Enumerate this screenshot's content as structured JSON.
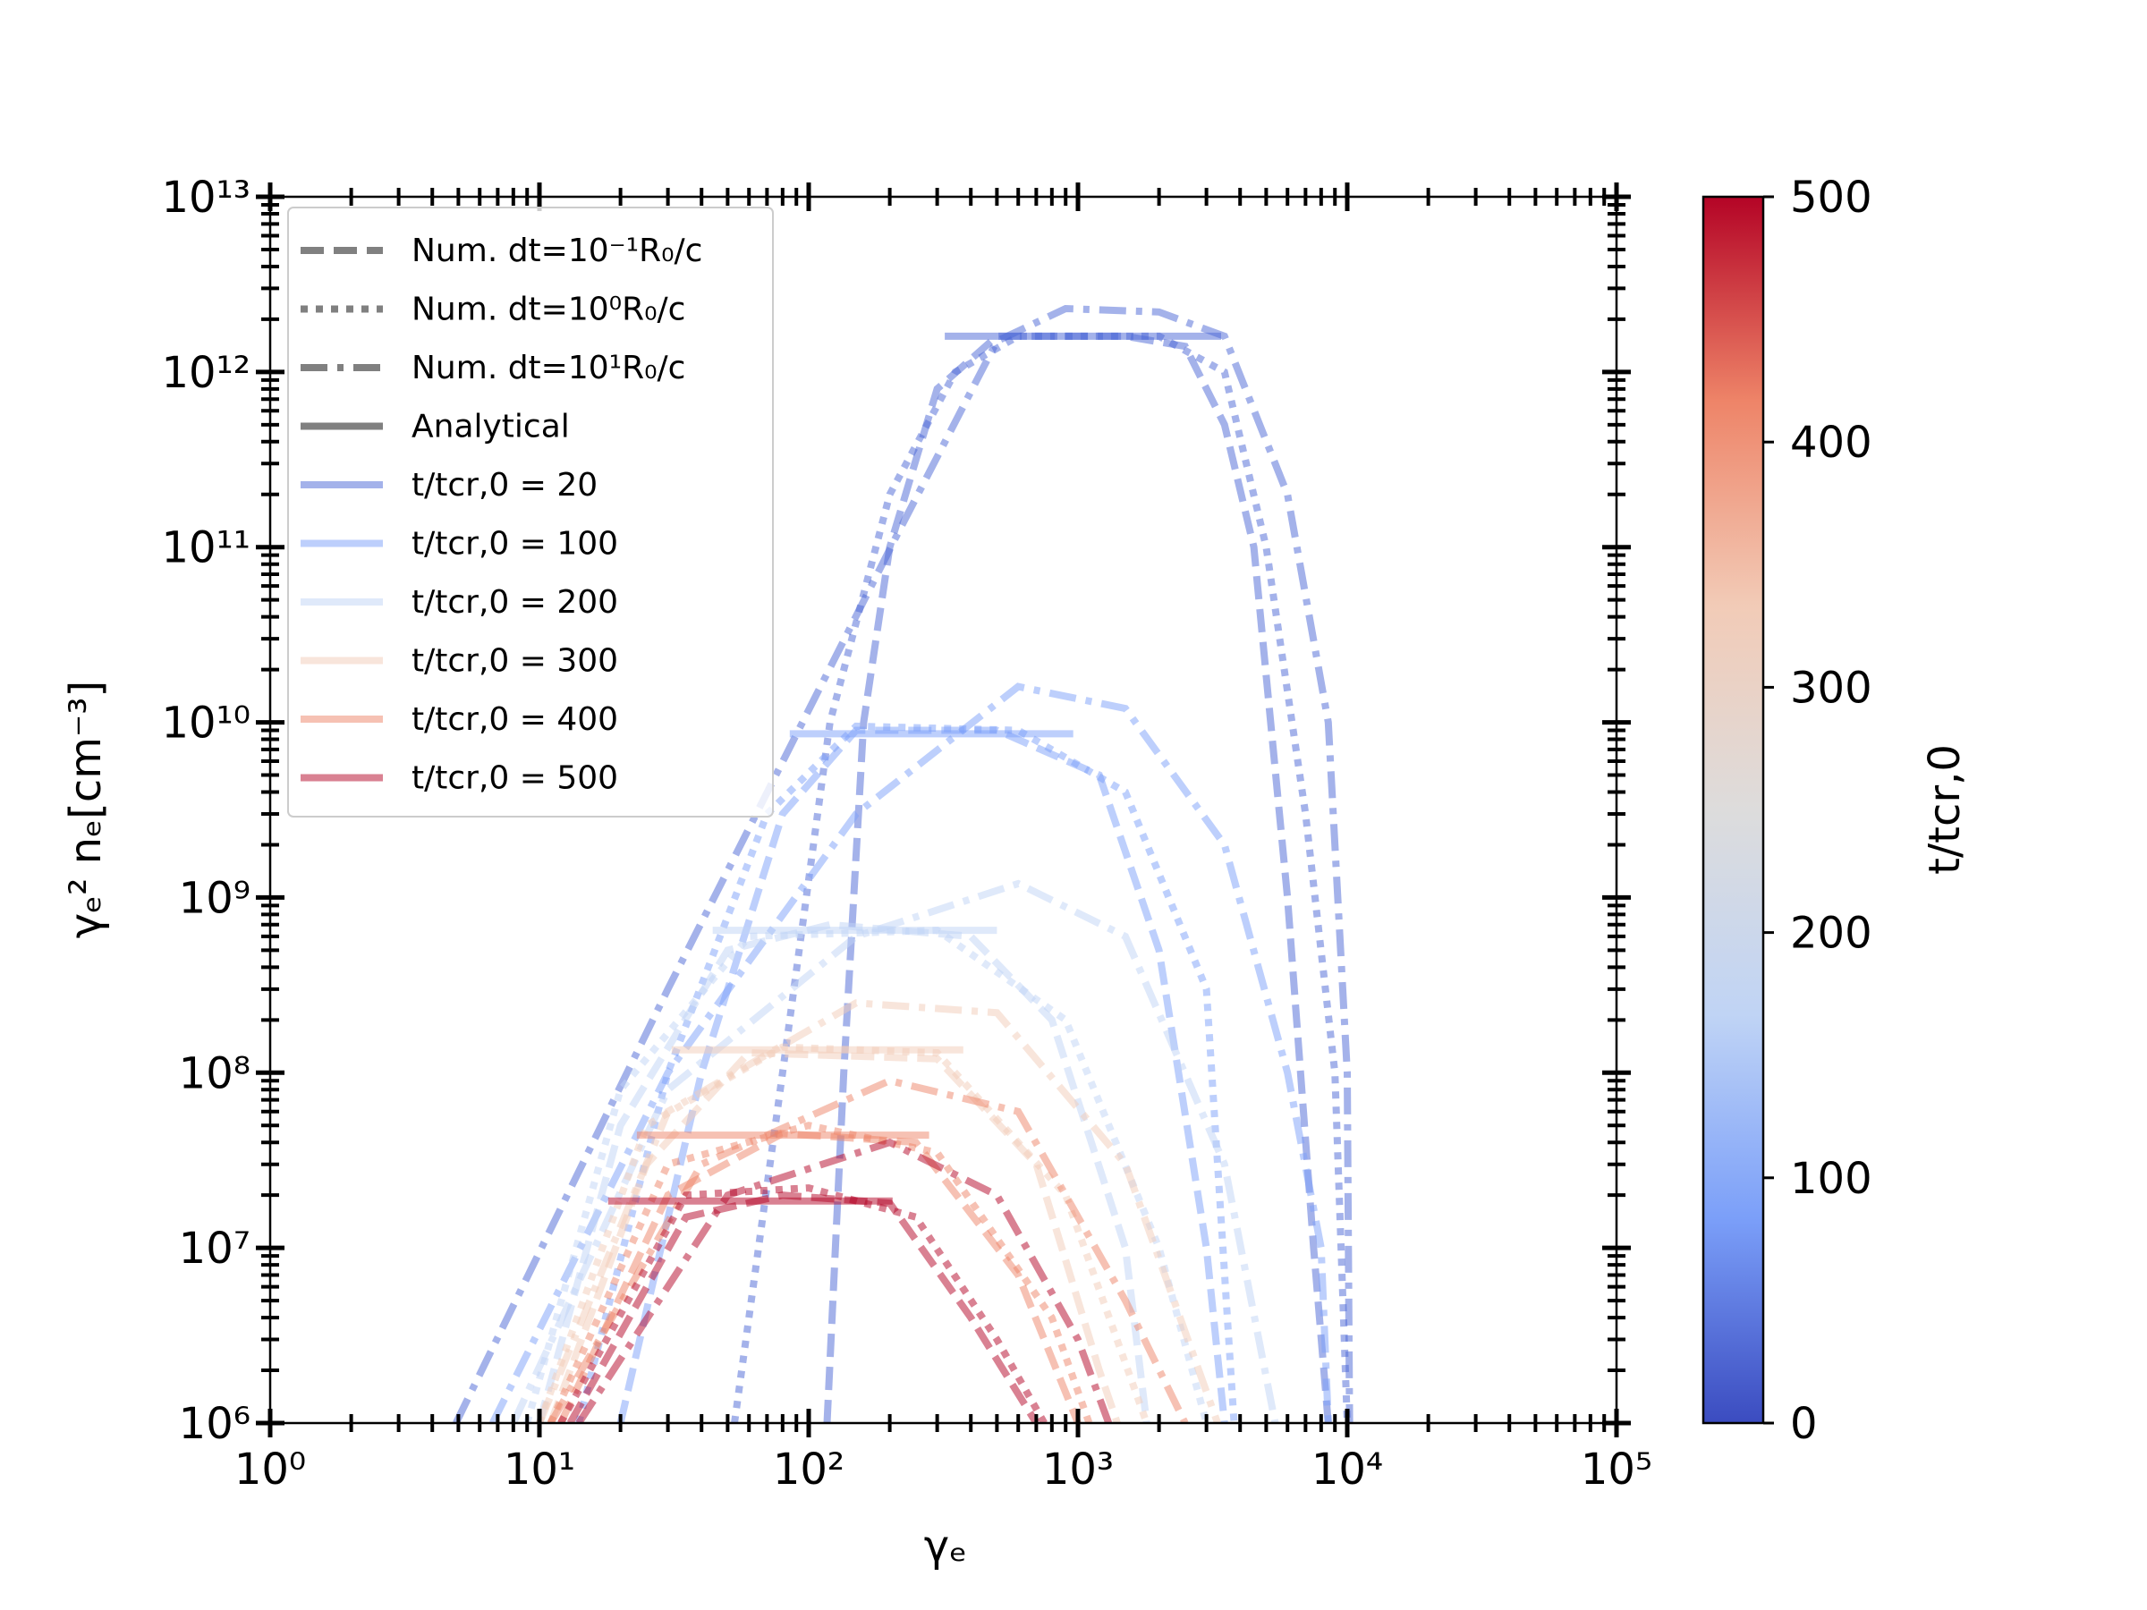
{
  "chart_data": {
    "type": "line",
    "xlabel": "γₑ",
    "ylabel": "γₑ² nₑ[cm⁻³]",
    "xscale": "log",
    "yscale": "log",
    "xlim": [
      1,
      100000
    ],
    "ylim": [
      1000000,
      10000000000000
    ],
    "xticks": [
      {
        "value": 1,
        "label": "10⁰"
      },
      {
        "value": 10,
        "label": "10¹"
      },
      {
        "value": 100,
        "label": "10²"
      },
      {
        "value": 1000,
        "label": "10³"
      },
      {
        "value": 10000,
        "label": "10⁴"
      },
      {
        "value": 100000,
        "label": "10⁵"
      }
    ],
    "yticks": [
      {
        "value": 1000000,
        "label": "10⁶"
      },
      {
        "value": 10000000,
        "label": "10⁷"
      },
      {
        "value": 100000000,
        "label": "10⁸"
      },
      {
        "value": 1000000000,
        "label": "10⁹"
      },
      {
        "value": 10000000000,
        "label": "10¹⁰"
      },
      {
        "value": 100000000000,
        "label": "10¹¹"
      },
      {
        "value": 1000000000000,
        "label": "10¹²"
      },
      {
        "value": 10000000000000,
        "label": "10¹³"
      }
    ],
    "minor_ticks": true,
    "alpha": 0.5,
    "legend": "upper left",
    "styles": [
      {
        "name": "Num. dt=10⁻¹R₀/c",
        "linestyle": "dashed"
      },
      {
        "name": "Num. dt=10⁰R₀/c",
        "linestyle": "dotted"
      },
      {
        "name": "Num. dt=10¹R₀/c",
        "linestyle": "dashdot"
      },
      {
        "name": "Analytical",
        "linestyle": "solid"
      }
    ],
    "style_color": "#808080",
    "times": [
      {
        "name": "t/tcr,0 = 20",
        "color": "#4a66d6"
      },
      {
        "name": "t/tcr,0 = 100",
        "color": "#7b9ff9"
      },
      {
        "name": "t/tcr,0 = 200",
        "color": "#c0d4f5"
      },
      {
        "name": "t/tcr,0 = 300",
        "color": "#f2cbb7"
      },
      {
        "name": "t/tcr,0 = 400",
        "color": "#ee8468"
      },
      {
        "name": "t/tcr,0 = 500",
        "color": "#b40426"
      }
    ],
    "series": [
      {
        "time": 0,
        "style": 3,
        "x": [
          320,
          3400
        ],
        "values": [
          1600000000000.0,
          1600000000000.0
        ]
      },
      {
        "time": 0,
        "style": 0,
        "x": [
          117,
          135,
          160,
          200,
          300,
          500,
          1500,
          2500,
          3500,
          4500,
          6000,
          7500,
          8500
        ],
        "values": [
          1000000.0,
          100000000.0,
          10000000000.0,
          100000000000.0,
          800000000000.0,
          1600000000000.0,
          1600000000000.0,
          1400000000000.0,
          500000000000.0,
          100000000000.0,
          1000000000.0,
          10000000.0,
          1000000.0
        ]
      },
      {
        "time": 0,
        "style": 1,
        "x": [
          53,
          80,
          120,
          200,
          350,
          600,
          2000,
          3500,
          5000,
          7000,
          9000,
          10000
        ],
        "values": [
          1000000.0,
          100000000.0,
          10000000000.0,
          200000000000.0,
          1000000000000.0,
          1600000000000.0,
          1600000000000.0,
          1000000000000.0,
          100000000000.0,
          3000000000.0,
          100000000.0,
          1000000.0
        ]
      },
      {
        "time": 0,
        "style": 2,
        "x": [
          4.9,
          30,
          220,
          500,
          900,
          2000,
          3500,
          6000,
          8500,
          10000,
          10200
        ],
        "values": [
          1000000.0,
          300000000.0,
          130000000000.0,
          1500000000000.0,
          2300000000000.0,
          2200000000000.0,
          1600000000000.0,
          200000000000.0,
          10000000000.0,
          100000000.0,
          1000000.0
        ]
      },
      {
        "time": 1,
        "style": 3,
        "x": [
          85,
          960
        ],
        "values": [
          8600000000.0,
          8600000000.0
        ]
      },
      {
        "time": 1,
        "style": 0,
        "x": [
          20,
          40,
          80,
          150,
          500,
          1200,
          2000,
          3000,
          3500
        ],
        "values": [
          1000000.0,
          100000000.0,
          3000000000.0,
          9000000000.0,
          9000000000.0,
          5000000000.0,
          500000000.0,
          10000000.0,
          1000000.0
        ]
      },
      {
        "time": 1,
        "style": 1,
        "x": [
          14,
          30,
          70,
          150,
          600,
          1500,
          3000,
          3800
        ],
        "values": [
          1000000.0,
          100000000.0,
          3000000000.0,
          9500000000.0,
          9000000000.0,
          4000000000.0,
          300000000.0,
          1000000.0
        ]
      },
      {
        "time": 1,
        "style": 2,
        "x": [
          6.7,
          30,
          150,
          600,
          1500,
          3500,
          6000,
          8000,
          8500
        ],
        "values": [
          1000000.0,
          100000000.0,
          3000000000.0,
          16000000000.0,
          12000000000.0,
          2000000000.0,
          100000000.0,
          10000000.0,
          1000000.0
        ]
      },
      {
        "time": 2,
        "style": 3,
        "x": [
          44,
          500
        ],
        "values": [
          650000000.0,
          650000000.0
        ]
      },
      {
        "time": 2,
        "style": 0,
        "x": [
          10,
          20,
          50,
          120,
          400,
          800,
          1500,
          1800
        ],
        "values": [
          1000000.0,
          50000000.0,
          500000000.0,
          700000000.0,
          600000000.0,
          200000000.0,
          10000000.0,
          1000000.0
        ]
      },
      {
        "time": 2,
        "style": 1,
        "x": [
          9,
          20,
          60,
          300,
          900,
          2000,
          3000
        ],
        "values": [
          1000000.0,
          80000000.0,
          600000000.0,
          650000000.0,
          200000000.0,
          10000000.0,
          1000000.0
        ]
      },
      {
        "time": 2,
        "style": 2,
        "x": [
          8,
          30,
          150,
          600,
          1500,
          3500,
          5400
        ],
        "values": [
          1000000.0,
          80000000.0,
          600000000.0,
          1200000000.0,
          600000000.0,
          30000000.0,
          1000000.0
        ]
      },
      {
        "time": 3,
        "style": 3,
        "x": [
          31,
          375
        ],
        "values": [
          135000000.0,
          135000000.0
        ]
      },
      {
        "time": 3,
        "style": 0,
        "x": [
          11,
          25,
          60,
          300,
          700,
          1200,
          1400
        ],
        "values": [
          1000000.0,
          30000000.0,
          130000000.0,
          120000000.0,
          30000000.0,
          2000000.0,
          1000000.0
        ]
      },
      {
        "time": 3,
        "style": 1,
        "x": [
          10,
          25,
          80,
          300,
          900,
          1800
        ],
        "values": [
          1000000.0,
          50000000.0,
          140000000.0,
          130000000.0,
          20000000.0,
          1000000.0
        ]
      },
      {
        "time": 3,
        "style": 2,
        "x": [
          10,
          30,
          150,
          500,
          1500,
          3300
        ],
        "values": [
          1000000.0,
          60000000.0,
          250000000.0,
          220000000.0,
          30000000.0,
          1000000.0
        ]
      },
      {
        "time": 4,
        "style": 3,
        "x": [
          23,
          280
        ],
        "values": [
          44000000.0,
          44000000.0
        ]
      },
      {
        "time": 4,
        "style": 0,
        "x": [
          12,
          30,
          80,
          250,
          600,
          1000
        ],
        "values": [
          1000000.0,
          20000000.0,
          45000000.0,
          40000000.0,
          7000000.0,
          1000000.0
        ]
      },
      {
        "time": 4,
        "style": 1,
        "x": [
          11,
          30,
          100,
          300,
          800,
          1100
        ],
        "values": [
          1000000.0,
          30000000.0,
          50000000.0,
          35000000.0,
          4000000.0,
          1000000.0
        ]
      },
      {
        "time": 4,
        "style": 2,
        "x": [
          11,
          40,
          200,
          600,
          1500,
          2500
        ],
        "values": [
          1000000.0,
          30000000.0,
          90000000.0,
          60000000.0,
          5000000.0,
          1000000.0
        ]
      },
      {
        "time": 5,
        "style": 3,
        "x": [
          18,
          205
        ],
        "values": [
          18500000.0,
          18500000.0
        ]
      },
      {
        "time": 5,
        "style": 0,
        "x": [
          13,
          35,
          80,
          200,
          400,
          700
        ],
        "values": [
          1000000.0,
          15000000.0,
          20000000.0,
          18000000.0,
          4000000.0,
          1000000.0
        ]
      },
      {
        "time": 5,
        "style": 1,
        "x": [
          12,
          35,
          100,
          250,
          500,
          750
        ],
        "values": [
          1000000.0,
          20000000.0,
          22000000.0,
          15000000.0,
          3000000.0,
          1000000.0
        ]
      },
      {
        "time": 5,
        "style": 2,
        "x": [
          14,
          50,
          200,
          500,
          1000,
          1300
        ],
        "values": [
          1000000.0,
          20000000.0,
          40000000.0,
          20000000.0,
          3000000.0,
          1000000.0
        ]
      }
    ],
    "colorbar": {
      "label": "t/tcr,0",
      "lim": [
        0,
        500
      ],
      "ticks": [
        0,
        100,
        200,
        300,
        400,
        500
      ],
      "colors": [
        "#3b4cc0",
        "#7b9ff9",
        "#c0d4f5",
        "#dddcdc",
        "#f2cbb7",
        "#ee8468",
        "#b40426"
      ]
    }
  }
}
